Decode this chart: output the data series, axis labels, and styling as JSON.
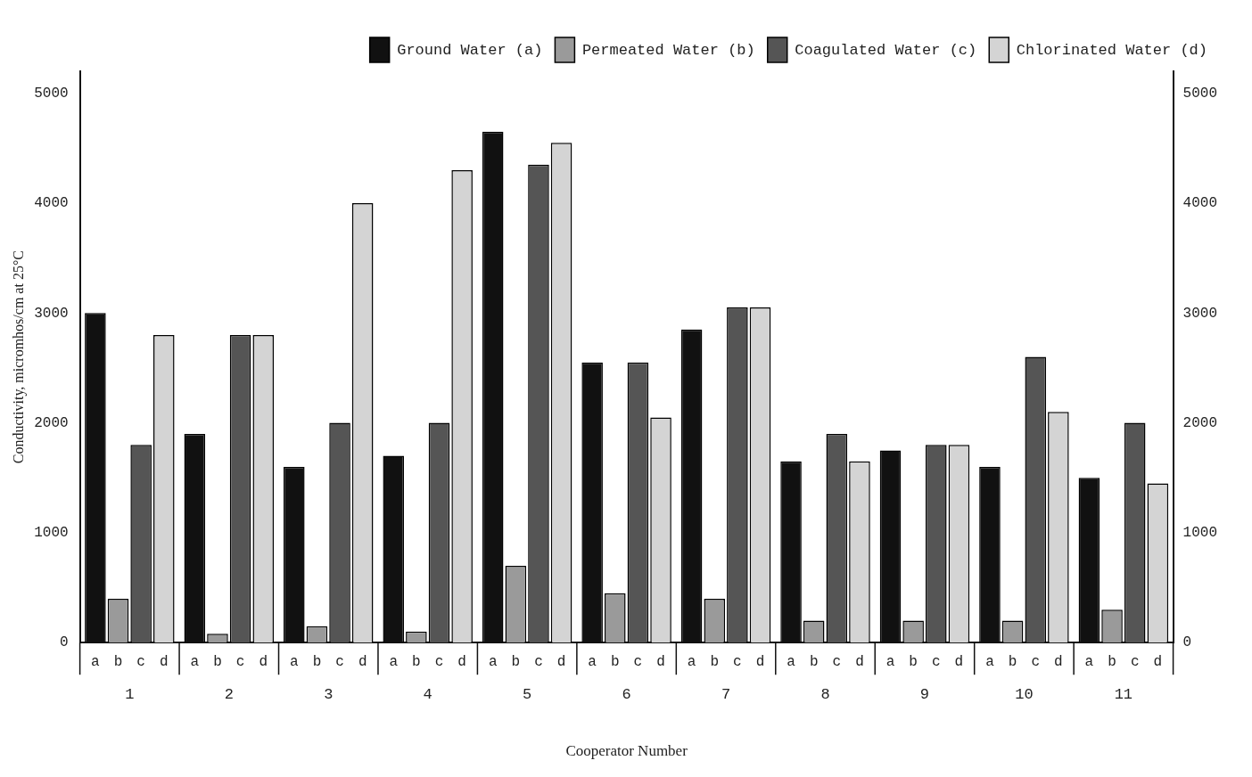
{
  "chart_data": {
    "type": "bar",
    "xlabel": "Cooperator Number",
    "ylabel": "Conductivity, micromhos/cm at 25°C",
    "categories": [
      "1",
      "2",
      "3",
      "4",
      "5",
      "6",
      "7",
      "8",
      "9",
      "10",
      "11"
    ],
    "series": [
      {
        "name": "Ground Water (a)",
        "color": "#111111",
        "values": [
          3000,
          1900,
          1600,
          1700,
          4650,
          2550,
          2850,
          1650,
          1750,
          1600,
          1500
        ]
      },
      {
        "name": "Permeated Water (b)",
        "color": "#9a9a9a",
        "values": [
          400,
          80,
          150,
          100,
          700,
          450,
          400,
          200,
          200,
          200,
          300
        ]
      },
      {
        "name": "Coagulated Water (c)",
        "color": "#555555",
        "values": [
          1800,
          2800,
          2000,
          2000,
          4350,
          2550,
          3050,
          1900,
          1800,
          2600,
          2000
        ]
      },
      {
        "name": "Chlorinated Water (d)",
        "color": "#d4d4d4",
        "values": [
          2800,
          2800,
          4000,
          4300,
          4550,
          2050,
          3050,
          1650,
          1800,
          2100,
          1450
        ]
      }
    ],
    "annotations": [
      "a",
      "b",
      "c",
      "d"
    ],
    "ylim": [
      0,
      5200
    ],
    "yticks": [
      0,
      1000,
      2000,
      3000,
      4000,
      5000
    ],
    "y2lim": [
      0,
      5200
    ],
    "y2ticks": [
      0,
      1000,
      2000,
      3000,
      4000,
      5000
    ],
    "grid": false,
    "legend": "top right"
  }
}
